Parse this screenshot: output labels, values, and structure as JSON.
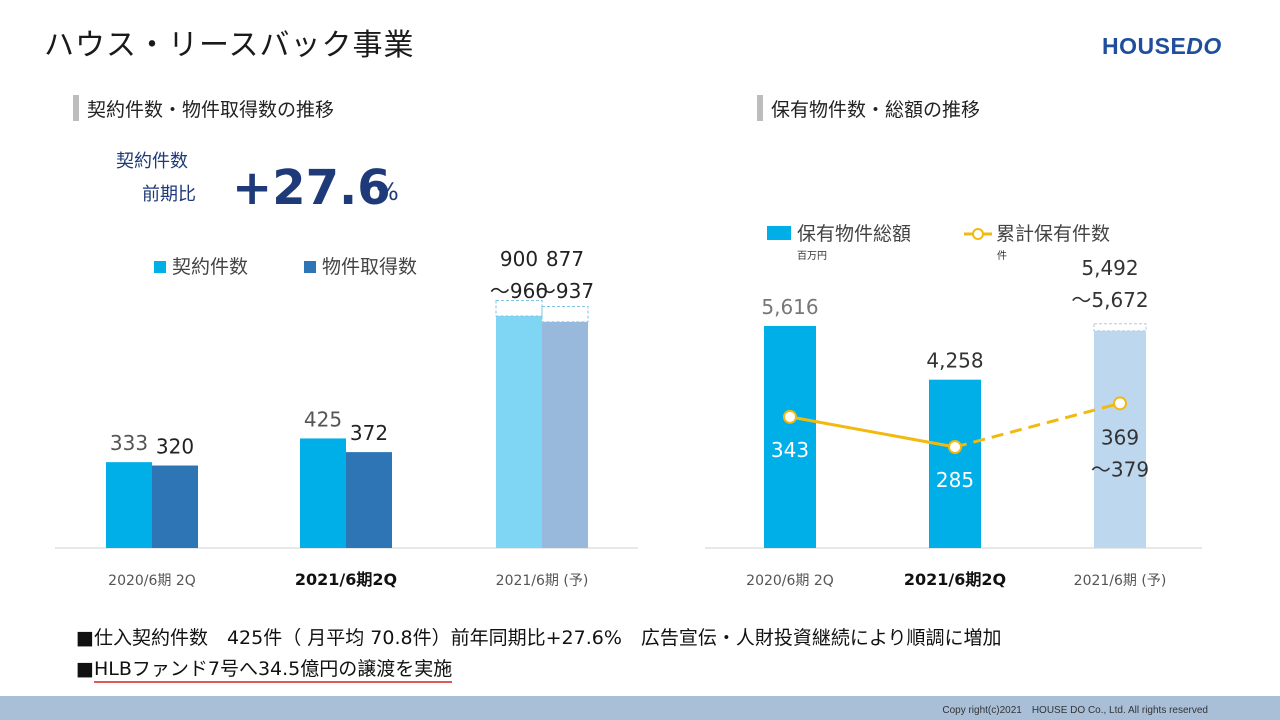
{
  "title": "ハウス・リースバック事業",
  "logo": {
    "part1": "HOUSE",
    "part2": "DO"
  },
  "left_section": {
    "heading": "契約件数・物件取得数の推移",
    "yoy_label_1": "契約件数",
    "yoy_label_2": "前期比",
    "yoy_value": "+27.6",
    "yoy_unit": "%"
  },
  "right_section": {
    "heading": "保有物件数・総額の推移"
  },
  "bullets": {
    "line1": "■仕入契約件数　425件（ 月平均 70.8件）前年同期比+27.6%　広告宣伝・人財投資継続により順調に増加",
    "line2_prefix": "■",
    "line2_underlined": "HLBファンド7号へ34.5億円の譲渡を実施"
  },
  "footer": {
    "copyright": "Copy right(c)2021　HOUSE DO Co., Ltd. All rights reserved"
  },
  "chart_data": [
    {
      "type": "bar",
      "categories": [
        "2020/6期 2Q",
        "2021/6期2Q",
        "2021/6期 (予)"
      ],
      "highlight_category_index": 1,
      "series": [
        {
          "name": "契約件数",
          "values": [
            333,
            425,
            900
          ],
          "range_high": [
            null,
            null,
            960
          ],
          "labels": [
            "333",
            "425",
            "900\n～960"
          ],
          "color": "#00aee8",
          "forecast_color": "#7fd6f4"
        },
        {
          "name": "物件取得数",
          "values": [
            320,
            372,
            877
          ],
          "range_high": [
            null,
            null,
            937
          ],
          "labels": [
            "320",
            "372",
            "877\n～937"
          ],
          "color": "#2e75b6",
          "forecast_color": "#98b9dc"
        }
      ],
      "legend_position": "top",
      "ylim": [
        0,
        1000
      ],
      "grid": false
    },
    {
      "type": "bar",
      "categories": [
        "2020/6期 2Q",
        "2021/6期2Q",
        "2021/6期 (予)"
      ],
      "highlight_category_index": 1,
      "series": [
        {
          "name": "保有物件総額",
          "unit": "百万円",
          "values": [
            5616,
            4258,
            5492
          ],
          "range_high": [
            null,
            null,
            5672
          ],
          "labels": [
            "5,616",
            "4,258",
            "5,492\n～5,672"
          ],
          "color": "#00aee8",
          "forecast_color": "#bdd7ee"
        },
        {
          "name": "累計保有件数",
          "unit": "件",
          "type": "line",
          "values": [
            343,
            285,
            369
          ],
          "range_high": [
            null,
            null,
            379
          ],
          "labels": [
            "343",
            "285",
            "369\n～379"
          ],
          "color": "#f2b90f",
          "forecast_dashed": true
        }
      ],
      "legend_position": "top",
      "ylim_bar": [
        0,
        6000
      ],
      "ylim_line": [
        0,
        600
      ],
      "grid": false
    }
  ]
}
